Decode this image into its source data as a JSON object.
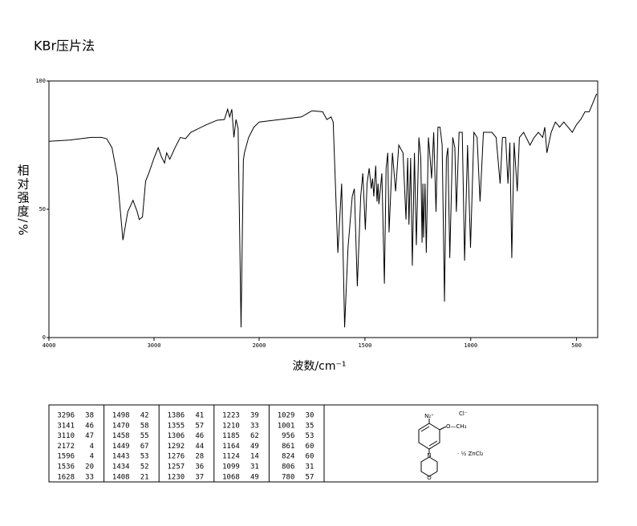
{
  "chart_data": {
    "type": "line",
    "title": "KBr压片法",
    "x_label": "波数/cm⁻¹",
    "y_label": "相对强度/%",
    "xlim": [
      4000,
      400
    ],
    "x_break": 2000,
    "xticks": [
      4000,
      3000,
      2000,
      1500,
      1000,
      500
    ],
    "ylim": [
      0,
      100
    ],
    "yticks": [
      0,
      50,
      100
    ],
    "grid": false,
    "series": [
      {
        "color": "#000000",
        "x": [
          4000,
          3800,
          3600,
          3500,
          3450,
          3400,
          3350,
          3296,
          3250,
          3200,
          3160,
          3141,
          3110,
          3080,
          3050,
          3000,
          2960,
          2930,
          2900,
          2880,
          2850,
          2800,
          2750,
          2700,
          2650,
          2600,
          2500,
          2400,
          2330,
          2300,
          2280,
          2260,
          2240,
          2220,
          2200,
          2172,
          2150,
          2140,
          2100,
          2050,
          2000,
          1900,
          1800,
          1750,
          1700,
          1680,
          1660,
          1650,
          1628,
          1610,
          1596,
          1580,
          1560,
          1550,
          1536,
          1520,
          1510,
          1498,
          1490,
          1480,
          1470,
          1464,
          1458,
          1453,
          1449,
          1443,
          1438,
          1434,
          1420,
          1408,
          1400,
          1392,
          1386,
          1370,
          1355,
          1340,
          1320,
          1306,
          1298,
          1292,
          1284,
          1276,
          1266,
          1257,
          1245,
          1236,
          1230,
          1226,
          1223,
          1216,
          1210,
          1200,
          1192,
          1185,
          1175,
          1164,
          1155,
          1145,
          1135,
          1124,
          1115,
          1108,
          1099,
          1085,
          1075,
          1068,
          1055,
          1040,
          1029,
          1015,
          1001,
          985,
          970,
          956,
          940,
          900,
          880,
          861,
          850,
          835,
          824,
          815,
          806,
          795,
          780,
          770,
          750,
          720,
          700,
          680,
          660,
          650,
          640,
          620,
          600,
          580,
          560,
          540,
          520,
          500,
          480,
          460,
          440,
          420,
          405
        ],
        "values": [
          76.5,
          77,
          78,
          78,
          77.5,
          74,
          63,
          38,
          49,
          53.5,
          49,
          46,
          47,
          61,
          64,
          70,
          74,
          70.5,
          68,
          72,
          69.5,
          74,
          78,
          77.5,
          80,
          81,
          83,
          84.7,
          85,
          89,
          86,
          89,
          78,
          85,
          81.5,
          4,
          69,
          72,
          78,
          82,
          84,
          85,
          86,
          88.4,
          88,
          85,
          86,
          84,
          33,
          60,
          4,
          35,
          55,
          58,
          20,
          55,
          64,
          42,
          60,
          66,
          58,
          62,
          55,
          62,
          67,
          53,
          60,
          52,
          64,
          21,
          66,
          72,
          41,
          72,
          57,
          75,
          72,
          46,
          70,
          44,
          70,
          28,
          72,
          36,
          78,
          70,
          37,
          60,
          39,
          60,
          33,
          78,
          70,
          62,
          80,
          49,
          82,
          82,
          75,
          14,
          70,
          74,
          31,
          78,
          74,
          49,
          80,
          80,
          30,
          75,
          35,
          80,
          78,
          53,
          80,
          80,
          78,
          60,
          78,
          78,
          60,
          76,
          31,
          76,
          57,
          78,
          80,
          75,
          78,
          80,
          78,
          82,
          72,
          80,
          84,
          82,
          84,
          82,
          80,
          83,
          85,
          88,
          88,
          92,
          95
        ]
      }
    ]
  },
  "peak_table": [
    [
      [
        3296,
        38
      ],
      [
        3141,
        46
      ],
      [
        3110,
        47
      ],
      [
        2172,
        4
      ],
      [
        1596,
        4
      ],
      [
        1536,
        20
      ],
      [
        1628,
        33
      ]
    ],
    [
      [
        1498,
        42
      ],
      [
        1470,
        58
      ],
      [
        1458,
        55
      ],
      [
        1449,
        67
      ],
      [
        1443,
        53
      ],
      [
        1434,
        52
      ],
      [
        1408,
        21
      ]
    ],
    [
      [
        1386,
        41
      ],
      [
        1355,
        57
      ],
      [
        1306,
        46
      ],
      [
        1292,
        44
      ],
      [
        1276,
        28
      ],
      [
        1257,
        36
      ],
      [
        1230,
        37
      ]
    ],
    [
      [
        1223,
        39
      ],
      [
        1210,
        33
      ],
      [
        1185,
        62
      ],
      [
        1164,
        49
      ],
      [
        1124,
        14
      ],
      [
        1099,
        31
      ],
      [
        1068,
        49
      ]
    ],
    [
      [
        1029,
        30
      ],
      [
        1001,
        35
      ],
      [
        956,
        53
      ],
      [
        861,
        60
      ],
      [
        824,
        60
      ],
      [
        806,
        31
      ],
      [
        780,
        57
      ]
    ]
  ],
  "structure": {
    "anion": "Cl⁻",
    "diazo": "N₂⁺",
    "methoxy": "O—CH₃",
    "amine": "N",
    "ether": "O",
    "salt": "· ½ ZnCl₂"
  }
}
